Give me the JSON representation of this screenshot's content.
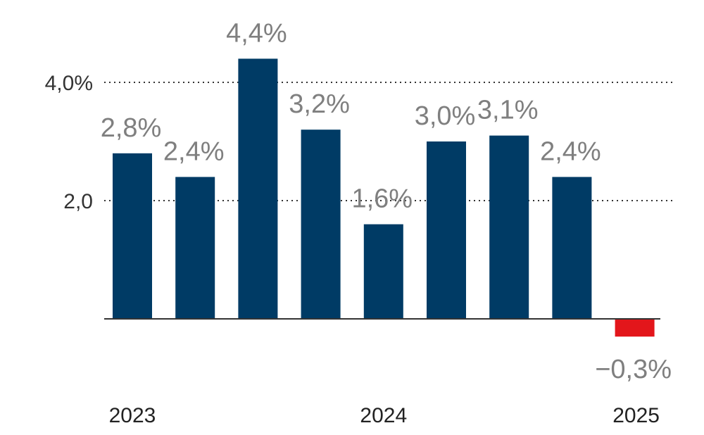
{
  "chart_data": {
    "type": "bar",
    "categories": [
      "",
      "",
      "",
      "",
      "",
      "",
      "",
      "",
      ""
    ],
    "values": [
      2.8,
      2.4,
      4.4,
      3.2,
      1.6,
      3.0,
      3.1,
      2.4,
      -0.3
    ],
    "data_labels": [
      "2,8%",
      "2,4%",
      "4,4%",
      "3,2%",
      "1,6%",
      "3,0%",
      "3,1%",
      "2,4%",
      "−0,3%"
    ],
    "year_labels": [
      {
        "label": "2023",
        "index": 0
      },
      {
        "label": "2024",
        "index": 4
      },
      {
        "label": "2025",
        "index": 8
      }
    ],
    "y_ticks": [
      {
        "value": 4.0,
        "label": "4,0%"
      },
      {
        "value": 2.0,
        "label": "2,0"
      }
    ],
    "ylim": [
      -0.5,
      4.8
    ],
    "grid": true,
    "colors": {
      "positive": "#003b65",
      "negative": "#e3161b",
      "label": "#7f7f7f"
    }
  }
}
